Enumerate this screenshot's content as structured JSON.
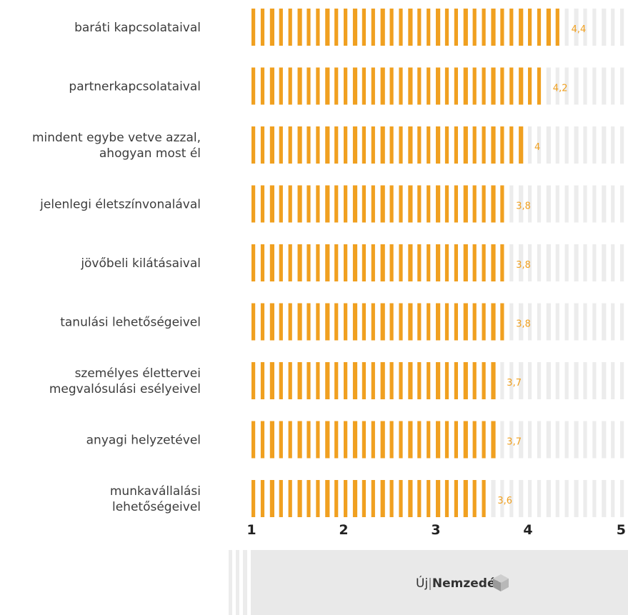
{
  "chart_data": {
    "type": "bar",
    "orientation": "horizontal",
    "categories": [
      "baráti kapcsolataival",
      "partnerkapcsolataival",
      "mindent egybe vetve azzal, ahogyan most él",
      "jelenlegi életszínvonalával",
      "jövőbeli kilátásaival",
      "tanulási lehetőségeivel",
      "személyes élettervei megvalósulási esélyeivel",
      "anyagi helyzetével",
      "munkavállalási lehetőségeivel"
    ],
    "category_lines": [
      [
        "baráti kapcsolataival"
      ],
      [
        "partnerkapcsolataival"
      ],
      [
        "mindent egybe vetve azzal,",
        "ahogyan most él"
      ],
      [
        "jelenlegi életszínvonalával"
      ],
      [
        "jövőbeli kilátásaival"
      ],
      [
        "tanulási lehetőségeivel"
      ],
      [
        "személyes élettervei",
        "megvalósulási esélyeivel"
      ],
      [
        "anyagi helyzetével"
      ],
      [
        "munkavállalási",
        "lehetőségeivel"
      ]
    ],
    "values": [
      4.4,
      4.2,
      4.0,
      3.8,
      3.8,
      3.8,
      3.7,
      3.7,
      3.6
    ],
    "value_labels": [
      "4,4",
      "4,2",
      "4",
      "3,8",
      "3,8",
      "3,8",
      "3,7",
      "3,7",
      "3,6"
    ],
    "xlim": [
      1,
      5
    ],
    "xticks": [
      "1",
      "2",
      "3",
      "4",
      "5"
    ],
    "colors": {
      "bar": "#f0a020",
      "track": "#ececec",
      "value_text": "#f0a020",
      "logo_box": "#e9e9e9"
    },
    "title": "",
    "xlabel": "",
    "ylabel": ""
  },
  "footer": {
    "logo_prefix": "Új",
    "logo_separator": "|",
    "logo_bold": "Nemzedék"
  }
}
